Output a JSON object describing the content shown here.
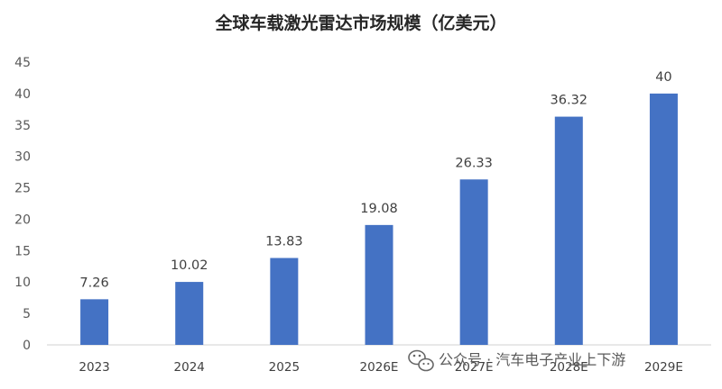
{
  "chart_data": {
    "type": "bar",
    "title": "全球车载激光雷达市场规模（亿美元）",
    "categories": [
      "2023",
      "2024",
      "2025",
      "2026E",
      "2027E",
      "2028E",
      "2029E"
    ],
    "values": [
      7.26,
      10.02,
      13.83,
      19.08,
      26.33,
      36.32,
      40
    ],
    "data_labels": [
      "7.26",
      "10.02",
      "13.83",
      "19.08",
      "26.33",
      "36.32",
      "40"
    ],
    "ylim": [
      0,
      45
    ],
    "yticks": [
      "0",
      "5",
      "10",
      "15",
      "20",
      "25",
      "30",
      "35",
      "40",
      "45"
    ],
    "grid": false,
    "bar_color": "#4472c4"
  },
  "watermark": {
    "icon": "wechat-icon",
    "text": "公众号 · 汽车电子产业上下游"
  }
}
